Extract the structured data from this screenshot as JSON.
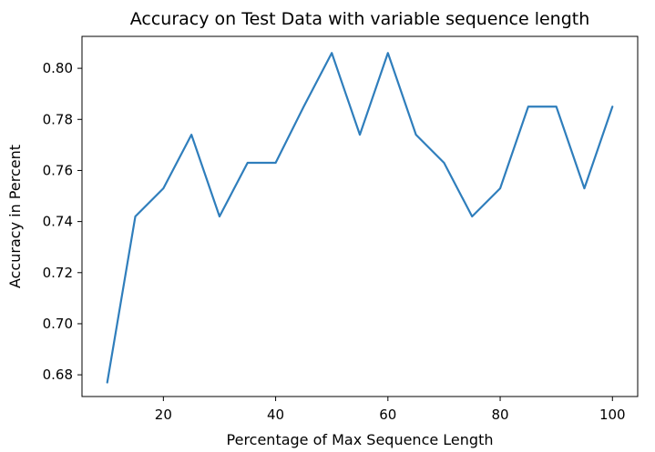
{
  "chart_data": {
    "type": "line",
    "title": "Accuracy on Test Data with variable sequence length",
    "xlabel": "Percentage of Max Sequence Length",
    "ylabel": "Accuracy in Percent",
    "xlim": [
      5.5,
      104.5
    ],
    "ylim": [
      0.6715,
      0.8125
    ],
    "x_ticks": [
      20,
      40,
      60,
      80,
      100
    ],
    "y_ticks": [
      0.68,
      0.7,
      0.72,
      0.74,
      0.76,
      0.78,
      0.8
    ],
    "grid": false,
    "series": [
      {
        "color": "#2f7ebc",
        "x": [
          10,
          15,
          20,
          25,
          30,
          35,
          40,
          45,
          50,
          55,
          60,
          65,
          70,
          75,
          80,
          85,
          90,
          95,
          100
        ],
        "y": [
          0.677,
          0.742,
          0.753,
          0.774,
          0.742,
          0.763,
          0.763,
          0.785,
          0.806,
          0.774,
          0.806,
          0.774,
          0.763,
          0.742,
          0.753,
          0.785,
          0.785,
          0.753,
          0.785
        ]
      }
    ]
  }
}
